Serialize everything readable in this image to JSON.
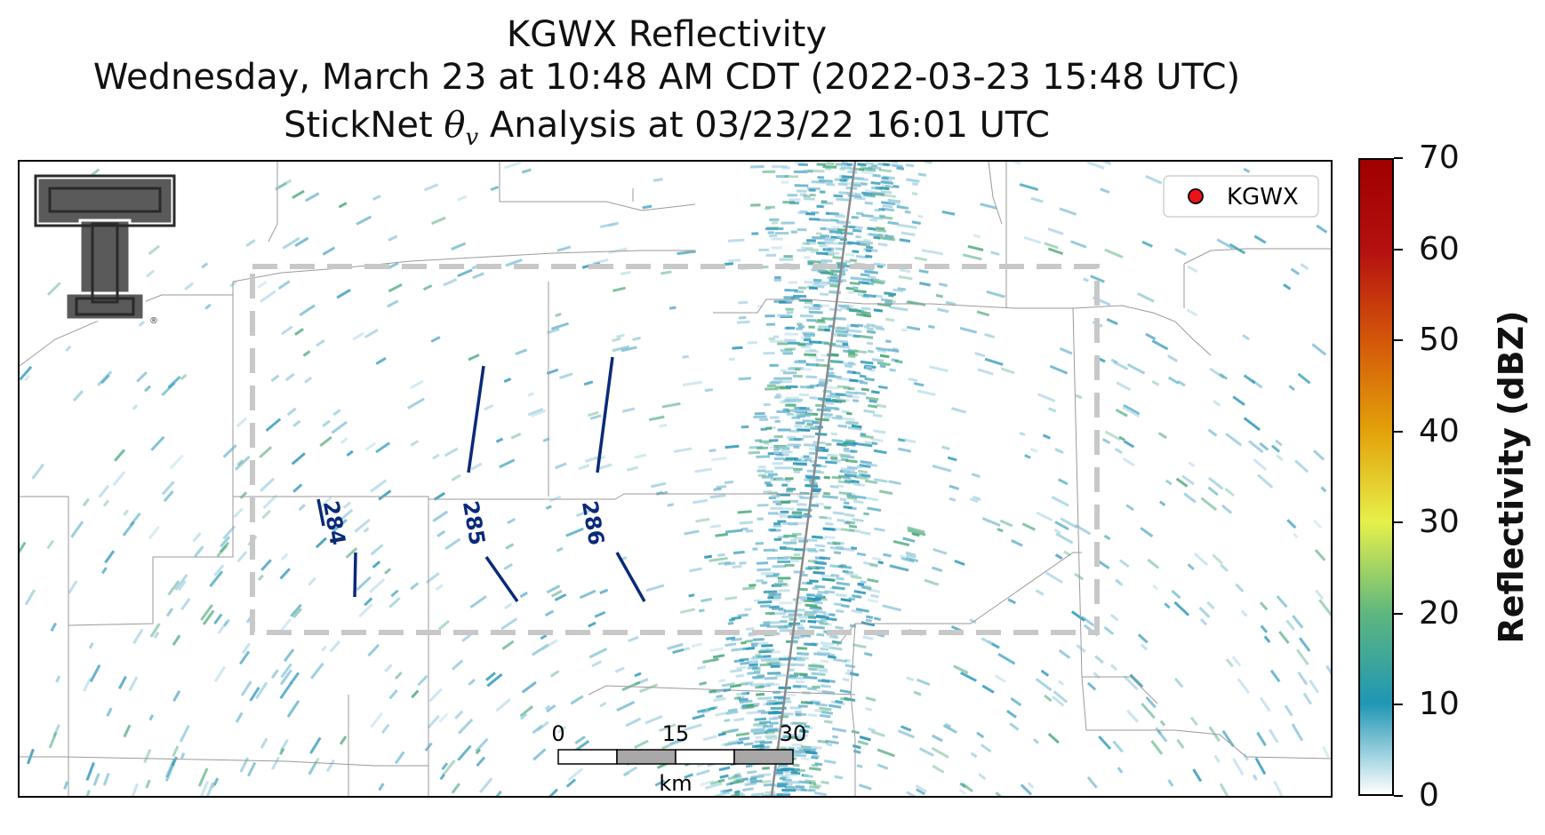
{
  "title": {
    "line1": "KGWX Reflectivity",
    "line2": "Wednesday, March 23 at 10:48 AM CDT (2022-03-23 15:48 UTC)",
    "line3_prefix": "StickNet ",
    "line3_symbol": "θ",
    "line3_subscript": "v",
    "line3_suffix": " Analysis at 03/23/22 16:01 UTC"
  },
  "legend": {
    "label": "KGWX",
    "marker_color": "#e8141a"
  },
  "colorbar": {
    "label": "Reflectivity (dBZ)",
    "min": 0,
    "max": 70,
    "ticks": [
      "0",
      "10",
      "20",
      "30",
      "40",
      "50",
      "60",
      "70"
    ],
    "colors": [
      "#ffffff",
      "#1f96b4",
      "#5fb77e",
      "#e6f04a",
      "#e3a20a",
      "#d4580a",
      "#b41010",
      "#a00000"
    ]
  },
  "contours": {
    "color": "#0a2a78",
    "labels": [
      "284",
      "285",
      "286"
    ]
  },
  "scale_bar": {
    "labels": [
      "0",
      "15",
      "30"
    ],
    "unit": "km"
  },
  "logo": {
    "name": "Texas Tech Double T",
    "registered_mark": "®"
  },
  "colors": {
    "echo_blue": "#2a95b6",
    "echo_light": "#9ccde0",
    "echo_green": "#4aa878",
    "county_lines": "#9a9a9a",
    "analysis_box": "#c8c8c8",
    "radial": "#8a8a8a"
  }
}
